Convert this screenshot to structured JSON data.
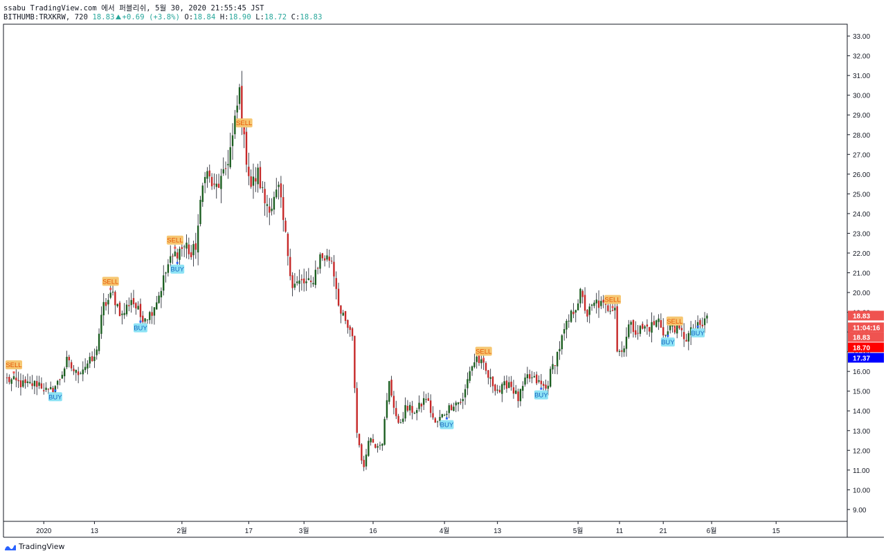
{
  "header": {
    "line1": "ssabu TradingView.com 에서 퍼블리쉬, 5월 30, 2020 21:55:45 JST",
    "symbol": "BITHUMB:TRXKRW, 720",
    "last": "18.83",
    "change": "+0.69 (+3.8%)",
    "o_label": "O:",
    "o_value": "18.84",
    "h_label": "H:",
    "h_value": "18.90",
    "l_label": "L:",
    "l_value": "18.72",
    "c_label": "C:",
    "c_value": "18.83",
    "change_icon": "up-triangle-icon"
  },
  "footer": {
    "brand": "TradingView",
    "logo_icon": "tradingview-logo-icon"
  },
  "colors": {
    "up": "#26a69a",
    "down": "#c62828",
    "candle_body_up": "#1b5e20",
    "wick": "#131722",
    "buy_label_bg": "#8ee3f5",
    "sell_label_bg": "#f6c772",
    "buy_dot": "#2962ff",
    "sell_dot": "#ef5350",
    "price_tag_close": "#ef5350",
    "price_tag_red": "#ff0000",
    "price_tag_blue": "#0000ff",
    "axis_line": "#131722"
  },
  "chart_data": {
    "type": "candlestick",
    "symbol": "BITHUMB:TRXKRW",
    "interval": "720",
    "ylim": [
      8.4,
      33.6
    ],
    "y_ticks": [
      "9.00",
      "10.00",
      "11.00",
      "12.00",
      "13.00",
      "14.00",
      "15.00",
      "16.00",
      "17.00",
      "18.00",
      "19.00",
      "20.00",
      "21.00",
      "22.00",
      "23.00",
      "24.00",
      "25.00",
      "26.00",
      "27.00",
      "28.00",
      "29.00",
      "30.00",
      "31.00",
      "32.00",
      "33.00"
    ],
    "x_ticks": [
      {
        "label": "2020",
        "bar": 16
      },
      {
        "label": "13",
        "bar": 38
      },
      {
        "label": "2월",
        "bar": 76
      },
      {
        "label": "17",
        "bar": 105
      },
      {
        "label": "3월",
        "bar": 129
      },
      {
        "label": "16",
        "bar": 159
      },
      {
        "label": "4월",
        "bar": 190
      },
      {
        "label": "13",
        "bar": 213
      },
      {
        "label": "5월",
        "bar": 248
      },
      {
        "label": "11",
        "bar": 266
      },
      {
        "label": "21",
        "bar": 285
      },
      {
        "label": "6월",
        "bar": 306
      },
      {
        "label": "15",
        "bar": 334
      }
    ],
    "bar_count": 360,
    "keypoints": [
      [
        0,
        15.6
      ],
      [
        8,
        15.3
      ],
      [
        14,
        15.4
      ],
      [
        18,
        14.9
      ],
      [
        22,
        15.4
      ],
      [
        26,
        16.5
      ],
      [
        30,
        15.9
      ],
      [
        35,
        16.4
      ],
      [
        38,
        16.6
      ],
      [
        42,
        19.3
      ],
      [
        46,
        19.9
      ],
      [
        50,
        18.8
      ],
      [
        54,
        19.7
      ],
      [
        58,
        18.8
      ],
      [
        62,
        18.9
      ],
      [
        66,
        19.9
      ],
      [
        70,
        21.4
      ],
      [
        74,
        22.1
      ],
      [
        78,
        22.4
      ],
      [
        80,
        21.8
      ],
      [
        82,
        22.4
      ],
      [
        86,
        26.3
      ],
      [
        90,
        25.2
      ],
      [
        94,
        25.8
      ],
      [
        98,
        27.8
      ],
      [
        101,
        30.2
      ],
      [
        103,
        27.6
      ],
      [
        106,
        25.4
      ],
      [
        109,
        26.0
      ],
      [
        112,
        24.6
      ],
      [
        115,
        24.4
      ],
      [
        118,
        25.2
      ],
      [
        121,
        22.8
      ],
      [
        124,
        20.4
      ],
      [
        128,
        20.5
      ],
      [
        132,
        20.4
      ],
      [
        136,
        21.8
      ],
      [
        141,
        21.7
      ],
      [
        145,
        18.9
      ],
      [
        148,
        18.2
      ],
      [
        150,
        17.6
      ],
      [
        152,
        12.9
      ],
      [
        155,
        11.0
      ],
      [
        157,
        12.7
      ],
      [
        160,
        12.3
      ],
      [
        163,
        12.5
      ],
      [
        166,
        15.4
      ],
      [
        170,
        13.2
      ],
      [
        173,
        14.1
      ],
      [
        178,
        14.0
      ],
      [
        182,
        14.7
      ],
      [
        186,
        13.3
      ],
      [
        190,
        13.9
      ],
      [
        194,
        14.4
      ],
      [
        198,
        14.5
      ],
      [
        201,
        16.1
      ],
      [
        204,
        16.7
      ],
      [
        207,
        16.2
      ],
      [
        210,
        15.5
      ],
      [
        214,
        15.0
      ],
      [
        218,
        15.5
      ],
      [
        222,
        14.6
      ],
      [
        226,
        15.7
      ],
      [
        230,
        15.5
      ],
      [
        234,
        15.1
      ],
      [
        236,
        15.9
      ],
      [
        239,
        16.9
      ],
      [
        242,
        18.0
      ],
      [
        246,
        19.1
      ],
      [
        249,
        19.9
      ],
      [
        252,
        18.9
      ],
      [
        256,
        19.5
      ],
      [
        260,
        19.2
      ],
      [
        264,
        19.4
      ],
      [
        265,
        17.1
      ],
      [
        267,
        17.0
      ],
      [
        270,
        18.3
      ],
      [
        274,
        18.1
      ],
      [
        280,
        18.3
      ],
      [
        283,
        18.6
      ],
      [
        286,
        17.8
      ],
      [
        289,
        18.4
      ],
      [
        292,
        18.0
      ],
      [
        295,
        17.7
      ],
      [
        298,
        18.1
      ],
      [
        302,
        18.3
      ],
      [
        304,
        18.83
      ]
    ],
    "signals": [
      {
        "type": "SELL",
        "bar": 3
      },
      {
        "type": "BUY",
        "bar": 21
      },
      {
        "type": "SELL",
        "bar": 45
      },
      {
        "type": "BUY",
        "bar": 58
      },
      {
        "type": "SELL",
        "bar": 73
      },
      {
        "type": "BUY",
        "bar": 74
      },
      {
        "type": "SELL",
        "bar": 103
      },
      {
        "type": "SELL",
        "bar": 207
      },
      {
        "type": "BUY",
        "bar": 232
      },
      {
        "type": "BUY",
        "bar": 191
      },
      {
        "type": "SELL",
        "bar": 263
      },
      {
        "type": "SELL",
        "bar": 290
      },
      {
        "type": "BUY",
        "bar": 287
      },
      {
        "type": "BUY",
        "bar": 300
      }
    ],
    "price_tags": [
      {
        "label": "18.83",
        "value": 18.83,
        "color": "#ef5350",
        "offset": 0
      },
      {
        "label": "11:04:16",
        "value": 18.83,
        "color": "#ef5350",
        "offset": 17
      },
      {
        "label": "18.83",
        "value": 18.83,
        "color": "#ef5350",
        "offset": 31
      },
      {
        "label": "18.70",
        "value": 18.7,
        "color": "#ff0000",
        "offset": 46
      },
      {
        "label": "17.37",
        "value": 17.37,
        "color": "#0000ff",
        "offset": 61
      }
    ]
  }
}
